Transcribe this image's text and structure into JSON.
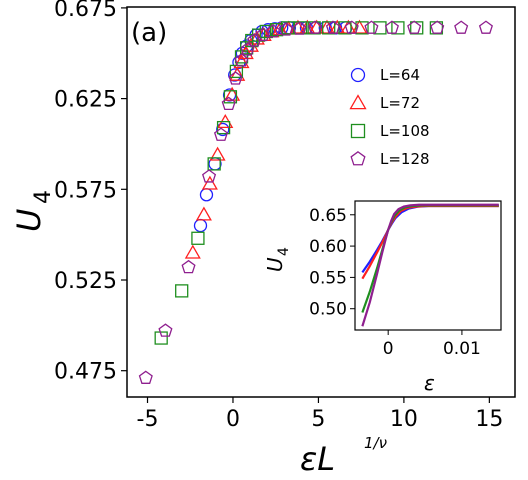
{
  "chart_data": [
    {
      "type": "scatter",
      "panel_label": "(a)",
      "xlabel": "εL",
      "xlabel_exponent": "1/ν",
      "ylabel": "U",
      "ylabel_subscript": "4",
      "xlim": [
        -6.2,
        16.5
      ],
      "ylim": [
        0.4605,
        0.6755
      ],
      "xticks": [
        -5,
        0,
        5,
        10,
        15
      ],
      "xtick_labels": [
        "-5",
        "0",
        "5",
        "10",
        "15"
      ],
      "yticks": [
        0.475,
        0.525,
        0.575,
        0.625,
        0.675
      ],
      "ytick_labels": [
        "0.475",
        "0.525",
        "0.575",
        "0.625",
        "0.675"
      ],
      "legend_position": "right, upper-middle",
      "series": [
        {
          "name": "L=64",
          "marker": "circle",
          "color": "#1f1fff",
          "x": [
            -1.9,
            -1.55,
            -1.05,
            -0.6,
            -0.2,
            0.1,
            0.35,
            0.55,
            0.8,
            1.05,
            1.35,
            1.7,
            2.05,
            2.45,
            2.85,
            3.3,
            3.8,
            4.3,
            4.85,
            5.4,
            6.0,
            6.6
          ],
          "y": [
            0.555,
            0.572,
            0.589,
            0.608,
            0.627,
            0.638,
            0.645,
            0.65,
            0.654,
            0.657,
            0.66,
            0.662,
            0.663,
            0.6635,
            0.664,
            0.664,
            0.664,
            0.664,
            0.664,
            0.664,
            0.664,
            0.664
          ]
        },
        {
          "name": "L=72",
          "marker": "triangle",
          "color": "#ff1f1f",
          "x": [
            -2.35,
            -1.7,
            -1.35,
            -0.9,
            -0.45,
            -0.05,
            0.25,
            0.5,
            0.75,
            1.05,
            1.4,
            1.8,
            2.25,
            2.75,
            3.25,
            3.8,
            4.35,
            4.9,
            5.5,
            6.1,
            6.75,
            7.4
          ],
          "y": [
            0.54,
            0.561,
            0.578,
            0.594,
            0.612,
            0.627,
            0.638,
            0.645,
            0.65,
            0.654,
            0.658,
            0.66,
            0.662,
            0.663,
            0.6635,
            0.664,
            0.664,
            0.664,
            0.664,
            0.664,
            0.664,
            0.664
          ]
        },
        {
          "name": "L=108",
          "marker": "square",
          "color": "#1f8f1f",
          "x": [
            -4.2,
            -3.0,
            -2.05,
            -1.1,
            -0.55,
            -0.15,
            0.2,
            0.5,
            0.8,
            1.1,
            1.5,
            1.95,
            2.55,
            3.2,
            3.95,
            4.75,
            5.6,
            6.55,
            7.55,
            8.6,
            9.65,
            10.75,
            11.9
          ],
          "y": [
            0.493,
            0.519,
            0.548,
            0.589,
            0.609,
            0.626,
            0.64,
            0.648,
            0.653,
            0.657,
            0.66,
            0.662,
            0.663,
            0.664,
            0.664,
            0.664,
            0.664,
            0.664,
            0.664,
            0.664,
            0.664,
            0.664,
            0.664
          ]
        },
        {
          "name": "L=128",
          "marker": "pentagon",
          "color": "#8f1f8f",
          "x": [
            -5.1,
            -3.95,
            -2.6,
            -1.4,
            -0.7,
            -0.25,
            0.15,
            0.5,
            0.85,
            1.25,
            1.75,
            2.35,
            3.1,
            3.9,
            4.8,
            5.85,
            6.95,
            8.1,
            9.3,
            10.6,
            11.95,
            13.35,
            14.8
          ],
          "y": [
            0.471,
            0.497,
            0.532,
            0.582,
            0.605,
            0.622,
            0.636,
            0.646,
            0.652,
            0.657,
            0.66,
            0.662,
            0.663,
            0.6635,
            0.664,
            0.664,
            0.664,
            0.664,
            0.664,
            0.664,
            0.664,
            0.664,
            0.664
          ]
        }
      ]
    },
    {
      "type": "line",
      "role": "inset",
      "xlabel": "ε",
      "ylabel": "U",
      "ylabel_subscript": "4",
      "xlim": [
        -0.0045,
        0.0153
      ],
      "ylim": [
        0.466,
        0.672
      ],
      "xticks": [
        0,
        0.01
      ],
      "xtick_labels": [
        "0",
        "0.01"
      ],
      "yticks": [
        0.5,
        0.55,
        0.6,
        0.65
      ],
      "ytick_labels": [
        "0.50",
        "0.55",
        "0.60",
        "0.65"
      ],
      "series": [
        {
          "name": "L=64",
          "color": "#1f1fff",
          "x": [
            -0.0035,
            -0.0025,
            -0.0015,
            -0.0008,
            -0.0003,
            0.0,
            0.0005,
            0.001,
            0.0018,
            0.0028,
            0.004,
            0.0055,
            0.0075,
            0.01,
            0.0125,
            0.015
          ],
          "y": [
            0.558,
            0.575,
            0.594,
            0.608,
            0.619,
            0.626,
            0.636,
            0.645,
            0.654,
            0.66,
            0.663,
            0.664,
            0.664,
            0.664,
            0.664,
            0.664
          ]
        },
        {
          "name": "L=72",
          "color": "#ff1f1f",
          "x": [
            -0.0035,
            -0.0025,
            -0.0015,
            -0.0008,
            -0.0003,
            0.0,
            0.0005,
            0.001,
            0.0017,
            0.0026,
            0.0037,
            0.005,
            0.007,
            0.01,
            0.0125,
            0.015
          ],
          "y": [
            0.548,
            0.568,
            0.59,
            0.606,
            0.618,
            0.626,
            0.638,
            0.647,
            0.656,
            0.661,
            0.663,
            0.664,
            0.664,
            0.664,
            0.664,
            0.664
          ]
        },
        {
          "name": "L=108",
          "color": "#1f8f1f",
          "x": [
            -0.0035,
            -0.0025,
            -0.0015,
            -0.0008,
            -0.0003,
            0.0,
            0.0004,
            0.0009,
            0.0015,
            0.0023,
            0.0033,
            0.0045,
            0.0065,
            0.009,
            0.012,
            0.015
          ],
          "y": [
            0.494,
            0.527,
            0.565,
            0.594,
            0.614,
            0.626,
            0.638,
            0.649,
            0.657,
            0.662,
            0.664,
            0.665,
            0.665,
            0.665,
            0.665,
            0.665
          ]
        },
        {
          "name": "L=128",
          "color": "#8f1f8f",
          "x": [
            -0.0035,
            -0.0025,
            -0.0015,
            -0.0008,
            -0.0003,
            0.0,
            0.0004,
            0.0008,
            0.0014,
            0.0021,
            0.003,
            0.0042,
            0.006,
            0.0085,
            0.012,
            0.015
          ],
          "y": [
            0.472,
            0.51,
            0.556,
            0.59,
            0.613,
            0.626,
            0.64,
            0.651,
            0.659,
            0.663,
            0.665,
            0.666,
            0.666,
            0.666,
            0.666,
            0.666
          ]
        }
      ]
    }
  ]
}
